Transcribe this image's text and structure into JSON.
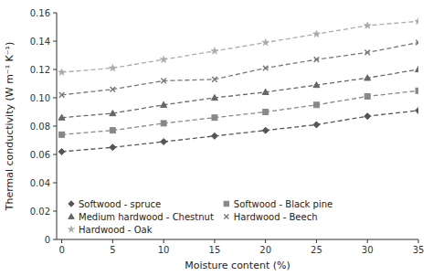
{
  "chart_data": {
    "type": "line",
    "xlabel": "Moisture content (%)",
    "ylabel": "Thermal conductivity (W m⁻¹ K⁻¹)",
    "x": [
      0,
      5,
      10,
      15,
      20,
      25,
      30,
      35
    ],
    "series": [
      {
        "name": "Softwood - spruce",
        "color": "#555555",
        "marker": "diamond",
        "line_style": "dashed",
        "values": [
          0.062,
          0.065,
          0.069,
          0.073,
          0.077,
          0.081,
          0.087,
          0.091
        ]
      },
      {
        "name": "Softwood - Black pine",
        "color": "#888888",
        "marker": "square",
        "line_style": "dashed",
        "values": [
          0.074,
          0.077,
          0.082,
          0.086,
          0.09,
          0.095,
          0.101,
          0.105
        ]
      },
      {
        "name": "Medium hardwood - Chestnut",
        "color": "#666666",
        "marker": "triangle",
        "line_style": "dashed",
        "values": [
          0.086,
          0.089,
          0.095,
          0.1,
          0.104,
          0.109,
          0.114,
          0.12
        ]
      },
      {
        "name": "Hardwood - Beech",
        "color": "#777777",
        "marker": "x",
        "line_style": "dashed",
        "values": [
          0.102,
          0.106,
          0.112,
          0.113,
          0.121,
          0.127,
          0.132,
          0.139
        ]
      },
      {
        "name": "Hardwood - Oak",
        "color": "#aaaaaa",
        "marker": "star",
        "line_style": "dashed",
        "values": [
          0.118,
          0.121,
          0.127,
          0.133,
          0.139,
          0.145,
          0.151,
          0.154
        ]
      }
    ],
    "xlim": [
      -0.5,
      35
    ],
    "xticks": [
      0,
      5,
      10,
      15,
      20,
      25,
      30,
      35
    ],
    "ylim": [
      0,
      0.16
    ],
    "yticks": [
      0,
      0.02,
      0.04,
      0.06,
      0.08,
      {
        "value": 0.1,
        "label": "0.10"
      },
      0.12,
      0.14,
      0.16
    ],
    "grid": false,
    "legend": "lower-left"
  }
}
